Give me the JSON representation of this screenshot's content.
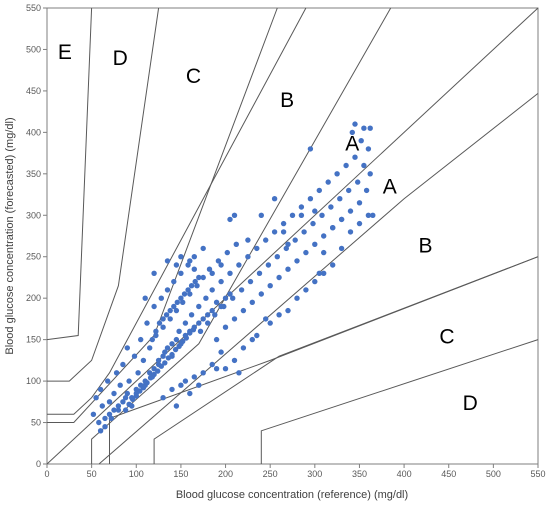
{
  "chart_data": {
    "type": "scatter",
    "xlabel": "Blood glucose concentration (reference) (mg/dl)",
    "ylabel": "Blood glucose concentration (forecasted) (mg/dl)",
    "xlim": [
      0,
      550
    ],
    "ylim": [
      0,
      550
    ],
    "x_ticks": [
      "0",
      "50",
      "100",
      "150",
      "200",
      "250",
      "300",
      "350",
      "400",
      "450",
      "500",
      "550"
    ],
    "y_ticks": [
      "0",
      "50",
      "100",
      "150",
      "200",
      "250",
      "300",
      "350",
      "400",
      "450",
      "500",
      "550"
    ],
    "grid": false,
    "legend": "none",
    "marker_color": "#4472c4",
    "zone_line_color": "#595959",
    "zone_labels": [
      {
        "text": "E",
        "x": 20,
        "y": 495
      },
      {
        "text": "D",
        "x": 82,
        "y": 488
      },
      {
        "text": "C",
        "x": 164,
        "y": 466
      },
      {
        "text": "B",
        "x": 269,
        "y": 437
      },
      {
        "text": "A",
        "x": 342,
        "y": 385
      },
      {
        "text": "A",
        "x": 384,
        "y": 333
      },
      {
        "text": "B",
        "x": 424,
        "y": 262
      },
      {
        "text": "C",
        "x": 448,
        "y": 152
      },
      {
        "text": "D",
        "x": 474,
        "y": 72
      }
    ],
    "zone_lines": [
      [
        [
          0,
          0
        ],
        [
          550,
          550
        ]
      ],
      [
        [
          0,
          150
        ],
        [
          35,
          155
        ],
        [
          50,
          550
        ]
      ],
      [
        [
          0,
          100
        ],
        [
          25,
          100
        ],
        [
          50,
          125
        ],
        [
          80,
          215
        ],
        [
          125,
          550
        ]
      ],
      [
        [
          0,
          60
        ],
        [
          30,
          60
        ],
        [
          50,
          80
        ],
        [
          70,
          110
        ],
        [
          290,
          550
        ]
      ],
      [
        [
          0,
          50
        ],
        [
          30,
          50
        ],
        [
          120,
          155
        ],
        [
          258,
          550
        ]
      ],
      [
        [
          50,
          0
        ],
        [
          50,
          30
        ],
        [
          170,
          145
        ],
        [
          385,
          550
        ]
      ],
      [
        [
          58.3,
          0
        ],
        [
          400,
          320
        ],
        [
          550,
          447
        ]
      ],
      [
        [
          70,
          0
        ],
        [
          70,
          55
        ],
        [
          250,
          125
        ],
        [
          550,
          250
        ]
      ],
      [
        [
          120,
          0
        ],
        [
          120,
          30
        ],
        [
          260,
          130
        ],
        [
          550,
          250
        ]
      ],
      [
        [
          240,
          0
        ],
        [
          240,
          40
        ],
        [
          550,
          150
        ]
      ]
    ],
    "series": [
      {
        "points": [
          [
            52,
            60
          ],
          [
            55,
            80
          ],
          [
            58,
            50
          ],
          [
            60,
            90
          ],
          [
            62,
            70
          ],
          [
            65,
            45
          ],
          [
            68,
            100
          ],
          [
            70,
            75
          ],
          [
            72,
            55
          ],
          [
            75,
            85
          ],
          [
            78,
            110
          ],
          [
            80,
            65
          ],
          [
            82,
            95
          ],
          [
            85,
            120
          ],
          [
            88,
            80
          ],
          [
            90,
            140
          ],
          [
            92,
            100
          ],
          [
            95,
            70
          ],
          [
            98,
            130
          ],
          [
            100,
            90
          ],
          [
            102,
            110
          ],
          [
            105,
            150
          ],
          [
            108,
            125
          ],
          [
            110,
            95
          ],
          [
            112,
            170
          ],
          [
            115,
            140
          ],
          [
            118,
            105
          ],
          [
            120,
            190
          ],
          [
            122,
            155
          ],
          [
            125,
            120
          ],
          [
            128,
            200
          ],
          [
            130,
            165
          ],
          [
            132,
            135
          ],
          [
            135,
            210
          ],
          [
            138,
            175
          ],
          [
            140,
            145
          ],
          [
            142,
            220
          ],
          [
            145,
            185
          ],
          [
            148,
            160
          ],
          [
            150,
            230
          ],
          [
            152,
            195
          ],
          [
            155,
            170
          ],
          [
            158,
            240
          ],
          [
            160,
            205
          ],
          [
            162,
            180
          ],
          [
            165,
            250
          ],
          [
            168,
            215
          ],
          [
            170,
            190
          ],
          [
            172,
            160
          ],
          [
            175,
            225
          ],
          [
            178,
            200
          ],
          [
            180,
            170
          ],
          [
            182,
            235
          ],
          [
            185,
            210
          ],
          [
            188,
            180
          ],
          [
            190,
            150
          ],
          [
            192,
            245
          ],
          [
            195,
            220
          ],
          [
            198,
            190
          ],
          [
            200,
            165
          ],
          [
            202,
            255
          ],
          [
            205,
            230
          ],
          [
            208,
            200
          ],
          [
            210,
            175
          ],
          [
            212,
            265
          ],
          [
            215,
            240
          ],
          [
            218,
            210
          ],
          [
            220,
            185
          ],
          [
            225,
            250
          ],
          [
            228,
            220
          ],
          [
            230,
            195
          ],
          [
            235,
            260
          ],
          [
            238,
            230
          ],
          [
            240,
            205
          ],
          [
            245,
            270
          ],
          [
            248,
            240
          ],
          [
            250,
            215
          ],
          [
            255,
            280
          ],
          [
            258,
            250
          ],
          [
            260,
            225
          ],
          [
            265,
            290
          ],
          [
            268,
            260
          ],
          [
            270,
            235
          ],
          [
            275,
            300
          ],
          [
            278,
            270
          ],
          [
            280,
            245
          ],
          [
            285,
            310
          ],
          [
            288,
            280
          ],
          [
            290,
            255
          ],
          [
            295,
            320
          ],
          [
            298,
            290
          ],
          [
            300,
            265
          ],
          [
            305,
            330
          ],
          [
            308,
            300
          ],
          [
            310,
            275
          ],
          [
            315,
            340
          ],
          [
            318,
            310
          ],
          [
            320,
            285
          ],
          [
            325,
            350
          ],
          [
            328,
            320
          ],
          [
            330,
            295
          ],
          [
            335,
            360
          ],
          [
            338,
            330
          ],
          [
            340,
            305
          ],
          [
            342,
            400
          ],
          [
            345,
            370
          ],
          [
            348,
            340
          ],
          [
            350,
            315
          ],
          [
            352,
            390
          ],
          [
            355,
            360
          ],
          [
            358,
            330
          ],
          [
            360,
            380
          ],
          [
            362,
            350
          ],
          [
            365,
            300
          ],
          [
            110,
            200
          ],
          [
            120,
            230
          ],
          [
            135,
            245
          ],
          [
            145,
            240
          ],
          [
            150,
            250
          ],
          [
            160,
            245
          ],
          [
            165,
            235
          ],
          [
            175,
            260
          ],
          [
            185,
            230
          ],
          [
            195,
            240
          ],
          [
            205,
            295
          ],
          [
            210,
            300
          ],
          [
            225,
            270
          ],
          [
            240,
            300
          ],
          [
            255,
            320
          ],
          [
            265,
            280
          ],
          [
            270,
            265
          ],
          [
            285,
            300
          ],
          [
            295,
            380
          ],
          [
            300,
            305
          ],
          [
            305,
            230
          ],
          [
            310,
            255
          ],
          [
            320,
            285
          ],
          [
            330,
            295
          ],
          [
            345,
            410
          ],
          [
            355,
            405
          ],
          [
            362,
            405
          ],
          [
            130,
            80
          ],
          [
            140,
            90
          ],
          [
            145,
            70
          ],
          [
            150,
            95
          ],
          [
            155,
            100
          ],
          [
            160,
            85
          ],
          [
            165,
            105
          ],
          [
            170,
            95
          ],
          [
            175,
            110
          ],
          [
            185,
            120
          ],
          [
            190,
            115
          ],
          [
            195,
            135
          ],
          [
            200,
            115
          ],
          [
            210,
            125
          ],
          [
            215,
            110
          ],
          [
            220,
            140
          ],
          [
            230,
            150
          ],
          [
            235,
            155
          ],
          [
            245,
            175
          ],
          [
            250,
            170
          ],
          [
            260,
            180
          ],
          [
            270,
            185
          ],
          [
            280,
            200
          ],
          [
            290,
            210
          ],
          [
            300,
            220
          ],
          [
            310,
            230
          ],
          [
            320,
            240
          ],
          [
            330,
            260
          ],
          [
            340,
            280
          ],
          [
            350,
            290
          ],
          [
            360,
            300
          ],
          [
            60,
            40
          ],
          [
            65,
            55
          ],
          [
            70,
            60
          ],
          [
            75,
            65
          ],
          [
            80,
            70
          ],
          [
            85,
            75
          ],
          [
            90,
            85
          ],
          [
            95,
            80
          ],
          [
            100,
            85
          ],
          [
            105,
            95
          ],
          [
            110,
            100
          ],
          [
            115,
            110
          ],
          [
            120,
            115
          ],
          [
            125,
            125
          ],
          [
            130,
            130
          ],
          [
            135,
            140
          ],
          [
            140,
            130
          ],
          [
            145,
            150
          ],
          [
            150,
            145
          ],
          [
            155,
            155
          ],
          [
            160,
            160
          ],
          [
            165,
            165
          ],
          [
            170,
            170
          ],
          [
            175,
            175
          ],
          [
            180,
            180
          ],
          [
            185,
            185
          ],
          [
            190,
            195
          ],
          [
            195,
            190
          ],
          [
            200,
            200
          ],
          [
            205,
            205
          ],
          [
            88,
            65
          ],
          [
            92,
            72
          ],
          [
            96,
            78
          ],
          [
            100,
            82
          ],
          [
            104,
            88
          ],
          [
            108,
            92
          ],
          [
            112,
            98
          ],
          [
            116,
            104
          ],
          [
            120,
            108
          ],
          [
            124,
            112
          ],
          [
            128,
            118
          ],
          [
            132,
            122
          ],
          [
            136,
            128
          ],
          [
            140,
            132
          ],
          [
            144,
            138
          ],
          [
            148,
            142
          ],
          [
            152,
            148
          ],
          [
            156,
            152
          ],
          [
            160,
            158
          ],
          [
            164,
            162
          ],
          [
            118,
            150
          ],
          [
            122,
            160
          ],
          [
            126,
            170
          ],
          [
            130,
            175
          ],
          [
            134,
            180
          ],
          [
            138,
            185
          ],
          [
            142,
            190
          ],
          [
            146,
            195
          ],
          [
            150,
            200
          ],
          [
            154,
            205
          ],
          [
            158,
            210
          ],
          [
            162,
            215
          ],
          [
            166,
            220
          ],
          [
            170,
            225
          ]
        ]
      }
    ]
  }
}
